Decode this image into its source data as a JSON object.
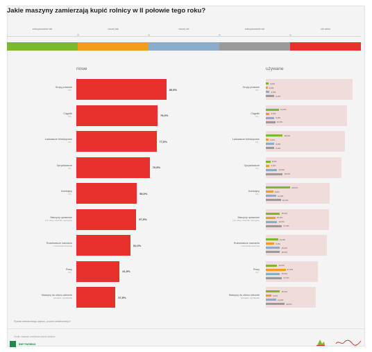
{
  "title": "Jakie maszyny zamierzają kupić rolnicy w II połowie tego roku?",
  "legend": {
    "labels": [
      "zdecydowanie tak",
      "raczej tak",
      "raczej nie",
      "zdecydowanie nie",
      "nie wiem"
    ],
    "colors": [
      "#7cb82f",
      "#f39c1e",
      "#8aacc8",
      "#9a9a9a",
      "#e8302c"
    ]
  },
  "panels": {
    "new_title": "nowe",
    "used_title": "używane"
  },
  "footnote": "Pytanie wielokrotnego wyboru, procent ankietowanych",
  "source": "Źródło: badanie ankietowe wśród rolników",
  "bank_logo_text": "BNP PARIBAS",
  "chart_data": [
    {
      "type": "bar",
      "orientation": "horizontal",
      "panel": "nowe",
      "categories": [
        {
          "label": "Grupy prasowe",
          "sub": "N=.."
        },
        {
          "label": "Ciągniki",
          "sub": "N=.."
        },
        {
          "label": "Ładowacze teleskopowe",
          "sub": "N=.."
        },
        {
          "label": "Opryskiwacze",
          "sub": "N=.."
        },
        {
          "label": "Kombajny",
          "sub": "N=.."
        },
        {
          "label": "Maszyny uprawowe",
          "sub": "(np. pługi, siewniki, agregaty)"
        },
        {
          "label": "Rozsiewacze nawozów",
          "sub": "i rozrzutniki obornika"
        },
        {
          "label": "Prasy",
          "sub": "N=.."
        },
        {
          "label": "Maszyny do zbioru zielonek",
          "sub": "(kosiarki, zgrabiarki)"
        }
      ],
      "values": [
        86.5,
        78.0,
        77.0,
        70.5,
        58.0,
        57.5,
        52.0,
        41.5,
        37.5
      ],
      "value_labels": [
        "86,5%",
        "78,0%",
        "77,0%",
        "70,5%",
        "58,0%",
        "57,5%",
        "52,0%",
        "41,5%",
        "37,5%"
      ],
      "xlim": [
        0,
        100
      ]
    },
    {
      "type": "bar",
      "orientation": "horizontal",
      "panel": "używane",
      "series": [
        {
          "name": "zdecydowanie tak",
          "color": "#7cb82f",
          "values": [
            3,
            14,
            18,
            5,
            26,
            15,
            13,
            12,
            15
          ]
        },
        {
          "name": "raczej tak",
          "color": "#f39c1e",
          "values": [
            2,
            4,
            3,
            4,
            8,
            10,
            9,
            21,
            6
          ]
        },
        {
          "name": "raczej nie",
          "color": "#8aacc8",
          "values": [
            4,
            9,
            9,
            12,
            11,
            12,
            15,
            15,
            11
          ]
        },
        {
          "name": "zdecydowanie nie",
          "color": "#9a9a9a",
          "values": [
            9,
            10,
            9,
            18,
            16,
            17,
            15,
            17,
            20
          ]
        }
      ],
      "value_labels": [
        [
          "3,0%",
          "2,0%",
          "4,0%",
          "9,0%"
        ],
        [
          "14,0%",
          "4,0%",
          "9,0%",
          "10,0%"
        ],
        [
          "18,0%",
          "3,0%",
          "9,0%",
          "9,0%"
        ],
        [
          "5,0%",
          "4,0%",
          "12,0%",
          "18,0%"
        ],
        [
          "26,0%",
          "8,0%",
          "11,0%",
          "16,0%"
        ],
        [
          "15,0%",
          "10,0%",
          "12,0%",
          "17,0%"
        ],
        [
          "13,0%",
          "9,0%",
          "15,0%",
          "15,0%"
        ],
        [
          "12,0%",
          "21,0%",
          "15,0%",
          "17,0%"
        ],
        [
          "15,0%",
          "6,0%",
          "11,0%",
          "20,0%"
        ]
      ],
      "background_values": [
        92,
        86,
        84,
        80,
        68,
        67,
        65,
        55,
        53
      ],
      "xlim": [
        0,
        100
      ]
    }
  ]
}
